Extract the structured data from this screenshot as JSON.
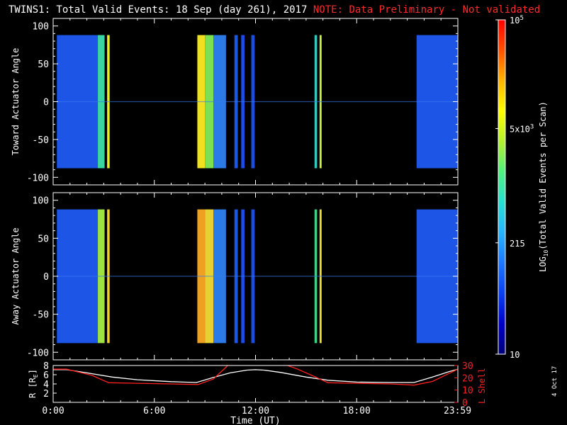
{
  "title": "TWINS1: Total Valid Events: 18 Sep (day 261), 2017",
  "note": "NOTE: Data Preliminary - Not validated",
  "corner_date": "4 Oct 17",
  "colors": {
    "background": "#000000",
    "axes": "#ffffff",
    "note": "#ff2020",
    "lshell": "#ff2020",
    "radius": "#ffffff"
  },
  "chart_data": [
    {
      "type": "heatmap",
      "panel": "toward",
      "ylabel": "Toward Actuator Angle",
      "ylim": [
        -110,
        110
      ],
      "yticks": [
        -100,
        -50,
        0,
        50,
        100
      ],
      "xlim_hours": [
        0,
        24
      ],
      "data_extent_deg": [
        -88,
        88
      ],
      "segments": [
        {
          "start": 0.22,
          "end": 2.65,
          "level": "mid-blue",
          "color": "#1d55e6"
        },
        {
          "start": 2.65,
          "end": 3.05,
          "level": "cyan-green",
          "color": "#38d6a0"
        },
        {
          "start": 3.2,
          "end": 3.35,
          "level": "yellow",
          "color": "#e8f020"
        },
        {
          "start": 8.55,
          "end": 9.0,
          "level": "yellow",
          "color": "#f0e020"
        },
        {
          "start": 9.0,
          "end": 9.5,
          "level": "green",
          "color": "#7ee050"
        },
        {
          "start": 9.5,
          "end": 10.25,
          "level": "mid-blue",
          "color": "#2a7ae8"
        },
        {
          "start": 10.75,
          "end": 10.95,
          "level": "blue",
          "color": "#1d55e6"
        },
        {
          "start": 11.15,
          "end": 11.35,
          "level": "blue",
          "color": "#1a4ee0"
        },
        {
          "start": 11.75,
          "end": 11.95,
          "level": "blue",
          "color": "#1a4ee0"
        },
        {
          "start": 15.5,
          "end": 15.65,
          "level": "cyan",
          "color": "#30c8c0"
        },
        {
          "start": 15.8,
          "end": 15.92,
          "level": "yellow-green",
          "color": "#c8f040"
        },
        {
          "start": 21.55,
          "end": 23.98,
          "level": "mid-blue",
          "color": "#1d55e6"
        }
      ]
    },
    {
      "type": "heatmap",
      "panel": "away",
      "ylabel": "Away Actuator Angle",
      "ylim": [
        -110,
        110
      ],
      "yticks": [
        -100,
        -50,
        0,
        50,
        100
      ],
      "xlim_hours": [
        0,
        24
      ],
      "data_extent_deg": [
        -88,
        88
      ],
      "segments": [
        {
          "start": 0.22,
          "end": 2.65,
          "level": "mid-blue",
          "color": "#1d55e6"
        },
        {
          "start": 2.65,
          "end": 3.05,
          "level": "green-yellow",
          "color": "#a0e040"
        },
        {
          "start": 3.2,
          "end": 3.35,
          "level": "yellow",
          "color": "#f0d020"
        },
        {
          "start": 8.55,
          "end": 9.0,
          "level": "orange",
          "color": "#f0a020"
        },
        {
          "start": 9.0,
          "end": 9.5,
          "level": "yellow",
          "color": "#e8d030"
        },
        {
          "start": 9.5,
          "end": 10.25,
          "level": "mid-blue",
          "color": "#2a7ae8"
        },
        {
          "start": 10.75,
          "end": 10.95,
          "level": "blue",
          "color": "#1d55e6"
        },
        {
          "start": 11.15,
          "end": 11.35,
          "level": "blue",
          "color": "#1a4ee0"
        },
        {
          "start": 11.75,
          "end": 11.95,
          "level": "blue",
          "color": "#1a4ee0"
        },
        {
          "start": 15.5,
          "end": 15.65,
          "level": "green",
          "color": "#40d080"
        },
        {
          "start": 15.8,
          "end": 15.92,
          "level": "yellow",
          "color": "#e8e030"
        },
        {
          "start": 21.55,
          "end": 23.98,
          "level": "mid-blue",
          "color": "#1d55e6"
        }
      ]
    },
    {
      "type": "line",
      "panel": "orbit",
      "xlabel": "Time (UT)",
      "xticks": [
        {
          "hour": 0,
          "label": "0:00"
        },
        {
          "hour": 6,
          "label": "6:00"
        },
        {
          "hour": 12,
          "label": "12:00"
        },
        {
          "hour": 18,
          "label": "18:00"
        },
        {
          "hour": 23.98,
          "label": "23:59"
        }
      ],
      "ylabel_left": "R [RE]",
      "ylabel_left_main": "R [R",
      "ylabel_left_sub": "E",
      "ylabel_left_end": "]",
      "ylim_left": [
        0,
        8
      ],
      "yticks_left": [
        2,
        4,
        6,
        8
      ],
      "ylabel_right": "L Shell",
      "ylim_right": [
        0,
        30
      ],
      "yticks_right": [
        0,
        10,
        20,
        30
      ],
      "series": [
        {
          "name": "R",
          "axis": "left",
          "x": [
            0,
            0.8,
            2,
            3.5,
            5,
            7,
            8.5,
            9.5,
            10.5,
            11.5,
            12,
            12.5,
            13.5,
            15,
            16.3,
            18,
            20,
            21.4,
            22.5,
            23.5,
            24
          ],
          "y": [
            7.1,
            7.1,
            6.4,
            5.5,
            4.9,
            4.5,
            4.3,
            5.4,
            6.4,
            7.0,
            7.1,
            7.0,
            6.5,
            5.5,
            4.8,
            4.4,
            4.3,
            4.3,
            5.5,
            6.7,
            7.2
          ]
        },
        {
          "name": "L Shell",
          "axis": "right",
          "x": [
            0,
            0.8,
            2.3,
            3.3,
            5,
            7,
            8.6,
            9.5,
            10.2,
            10.5,
            13.5,
            14.5,
            15.5,
            16.3,
            18,
            20,
            21.4,
            22.5,
            23.4,
            24
          ],
          "y": [
            27,
            27,
            22,
            16,
            15.5,
            15,
            14.5,
            19,
            28,
            32,
            32,
            27,
            21,
            16,
            15.5,
            15,
            14,
            17,
            23,
            27
          ]
        }
      ]
    }
  ],
  "colorbar": {
    "label": "LOG10(Total Valid Events per Scan)",
    "label_main": "LOG",
    "label_sub": "10",
    "label_rest": "(Total Valid Events per Scan)",
    "scale": "log",
    "range": [
      10,
      100000
    ],
    "ticks": [
      {
        "value": 10,
        "label": "10"
      },
      {
        "value": 215,
        "label": "215"
      },
      {
        "value": 5000,
        "label": "5x10",
        "exp": "3"
      },
      {
        "value": 100000,
        "label": "10",
        "exp": "5"
      }
    ],
    "stops": [
      "#000078",
      "#0000c8",
      "#0a40f0",
      "#1e78ff",
      "#28b4ff",
      "#28e0d0",
      "#50f080",
      "#b4f030",
      "#ffff00",
      "#ffb400",
      "#ff5000",
      "#ff0000"
    ]
  }
}
